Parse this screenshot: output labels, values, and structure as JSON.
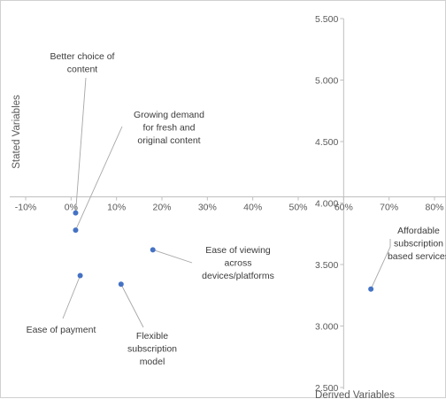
{
  "chart_data": {
    "type": "scatter",
    "xlabel": "Derived Variables",
    "ylabel": "Stated Variables",
    "x_ticks": [
      "-10%",
      "0%",
      "10%",
      "20%",
      "30%",
      "40%",
      "50%",
      "60%",
      "70%",
      "80%"
    ],
    "y_ticks": [
      "2.500",
      "3.000",
      "3.500",
      "4.000",
      "4.500",
      "5.000",
      "5.500"
    ],
    "xlim": [
      -0.1,
      0.8
    ],
    "ylim": [
      2.5,
      5.5
    ],
    "x_axis_crosses_y_at": 4.05,
    "y_axis_crosses_x_at": 0.6,
    "grid": false,
    "marker_color": "#4472C4",
    "axis_color": "#bfbfbf",
    "points": [
      {
        "name": "Better choice of content",
        "label_lines": [
          "Better choice of",
          "content"
        ],
        "x": 0.01,
        "y": 3.92
      },
      {
        "name": "Growing demand for fresh and original content",
        "label_lines": [
          "Growing demand",
          "for fresh and",
          "original content"
        ],
        "x": 0.01,
        "y": 3.78
      },
      {
        "name": "Ease of viewing across devices/platforms",
        "label_lines": [
          "Ease of viewing",
          "across",
          "devices/platforms"
        ],
        "x": 0.18,
        "y": 3.62
      },
      {
        "name": "Ease of payment",
        "label_lines": [
          "Ease of payment"
        ],
        "x": 0.02,
        "y": 3.41
      },
      {
        "name": "Flexible subscription model",
        "label_lines": [
          "Flexible",
          "subscription",
          "model"
        ],
        "x": 0.11,
        "y": 3.34
      },
      {
        "name": "Affordable subscription based services",
        "label_lines": [
          "Affordable",
          "subscription",
          "based services"
        ],
        "x": 0.66,
        "y": 3.3
      }
    ]
  }
}
